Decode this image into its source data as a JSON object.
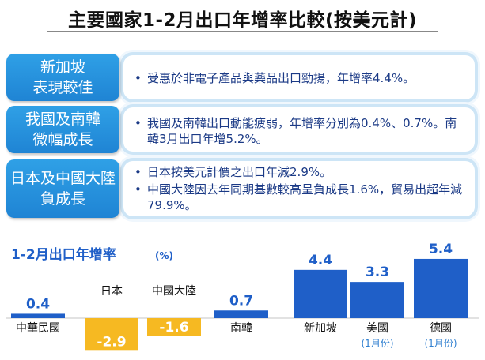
{
  "title": "主要國家1-2月出口年增率比較(按美元計)",
  "rows": [
    {
      "tag_line1": "新加坡",
      "tag_line2": "表現較佳",
      "bullets": [
        "受惠於非電子產品與藥品出口勁揚，年增率4.4%。"
      ]
    },
    {
      "tag_line1": "我國及南韓",
      "tag_line2": "微幅成長",
      "bullets": [
        "我國及南韓出口動能疲弱，年增率分別為0.4%、0.7%。南韓3月出口年增5.2%。"
      ]
    },
    {
      "tag_line1": "日本及中國大陸",
      "tag_line2": "負成長",
      "bullets": [
        "日本按美元計價之出口年減2.9%。",
        "中國大陸因去年同期基數較高呈負成長1.6%，貿易出超年減79.9%。"
      ]
    }
  ],
  "bullet_symbol": "•",
  "colors": {
    "positive_bar": "#1f5fc8",
    "negative_bar": "#f6b922",
    "tag_blue": "#2792dd",
    "chart_title": "#1f5fc8",
    "value_label": "#1f5fc8",
    "negative_label": "#ffffff",
    "note": "#2f7fd0"
  },
  "chart_data": {
    "type": "bar",
    "title": "1-2月出口年增率",
    "unit": "(%)",
    "categories": [
      "中華民國",
      "日本",
      "中國大陸",
      "南韓",
      "新加坡",
      "美國",
      "德國"
    ],
    "notes": [
      "",
      "",
      "",
      "",
      "",
      "(1月份)",
      "(1月份)"
    ],
    "values": [
      0.4,
      -2.9,
      -1.6,
      0.7,
      4.4,
      3.3,
      5.4
    ],
    "value_labels": [
      "0.4",
      "-2.9",
      "-1.6",
      "0.7",
      "4.4",
      "3.3",
      "5.4"
    ]
  }
}
